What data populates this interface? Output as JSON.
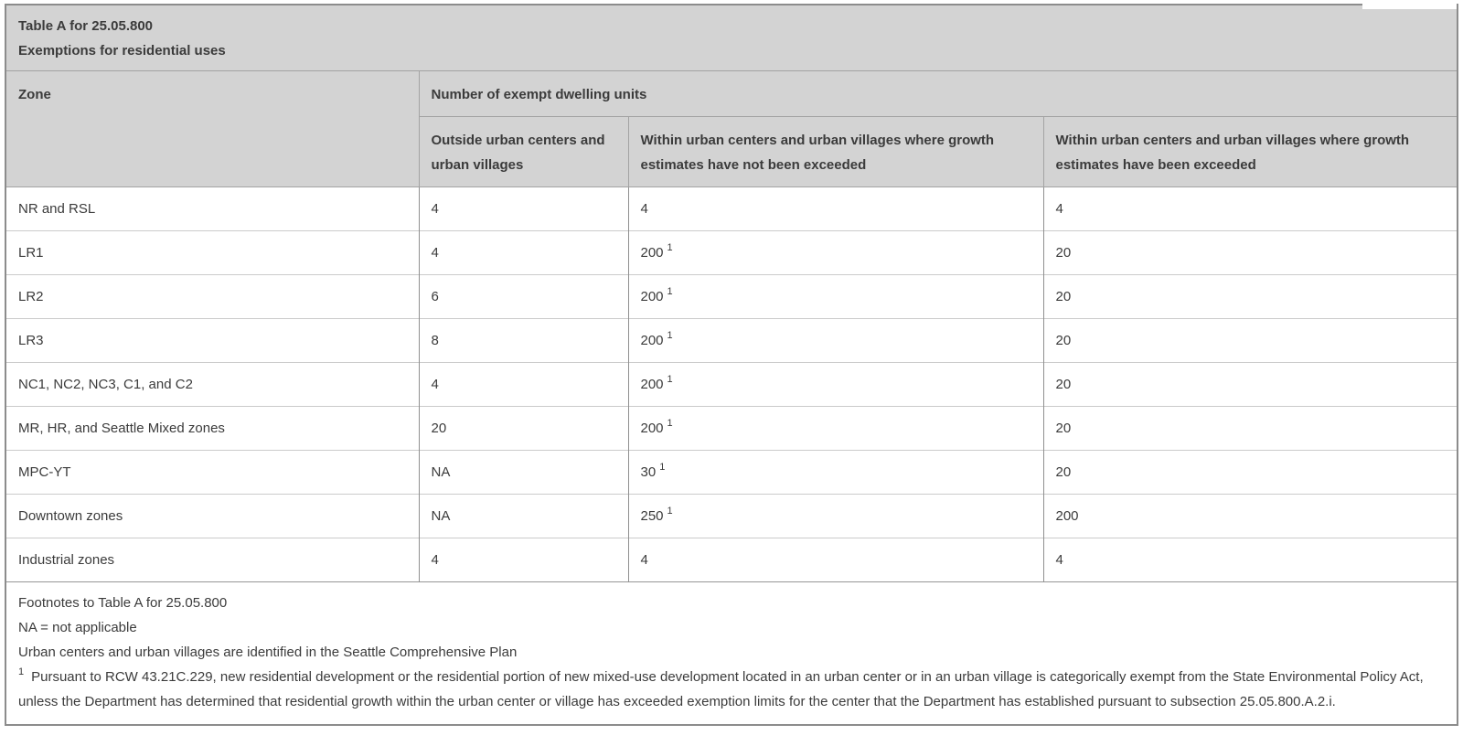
{
  "colors": {
    "header_bg": "#d3d3d3",
    "outer_border": "#8c8c8c",
    "header_border": "#a3a3a3",
    "column_rule": "#909090",
    "row_rule": "#cbcbcb",
    "text": "#3b3b3b"
  },
  "table": {
    "title": "Table A for 25.05.800",
    "subtitle": "Exemptions for residential uses",
    "headers": {
      "zone": "Zone",
      "group": "Number of exempt dwelling units",
      "sub1": "Outside urban centers and urban villages",
      "sub2": "Within urban centers and urban villages where growth estimates have not been exceeded",
      "sub3": "Within urban centers and urban villages where growth estimates have been exceeded"
    },
    "rows": [
      {
        "zone": "NR and RSL",
        "c1": "4",
        "c2": "4",
        "c2sup": "",
        "c3": "4"
      },
      {
        "zone": "LR1",
        "c1": "4",
        "c2": "200",
        "c2sup": "1",
        "c3": "20"
      },
      {
        "zone": "LR2",
        "c1": "6",
        "c2": "200",
        "c2sup": "1",
        "c3": "20"
      },
      {
        "zone": "LR3",
        "c1": "8",
        "c2": "200",
        "c2sup": "1",
        "c3": "20"
      },
      {
        "zone": "NC1, NC2, NC3, C1, and C2",
        "c1": "4",
        "c2": "200",
        "c2sup": "1",
        "c3": "20"
      },
      {
        "zone": "MR, HR, and Seattle Mixed zones",
        "c1": "20",
        "c2": "200",
        "c2sup": "1",
        "c3": "20"
      },
      {
        "zone": "MPC-YT",
        "c1": "NA",
        "c2": "30",
        "c2sup": "1",
        "c3": "20"
      },
      {
        "zone": "Downtown zones",
        "c1": "NA",
        "c2": "250",
        "c2sup": "1",
        "c3": "200"
      },
      {
        "zone": "Industrial zones",
        "c1": "4",
        "c2": "4",
        "c2sup": "",
        "c3": "4"
      }
    ],
    "footnotes": {
      "title": "Footnotes to Table A for 25.05.800",
      "na": "NA = not applicable",
      "urban": "Urban centers and urban villages are identified in the Seattle Comprehensive Plan",
      "fn1_marker": "1",
      "fn1_text": "Pursuant to RCW 43.21C.229, new residential development or the residential portion of new mixed-use development located in an urban center or in an urban village is categorically exempt from the State Environmental Policy Act, unless the Department has determined that residential growth within the urban center or village has exceeded exemption limits for the center that the Department has established pursuant to subsection 25.05.800.A.2.i."
    }
  }
}
